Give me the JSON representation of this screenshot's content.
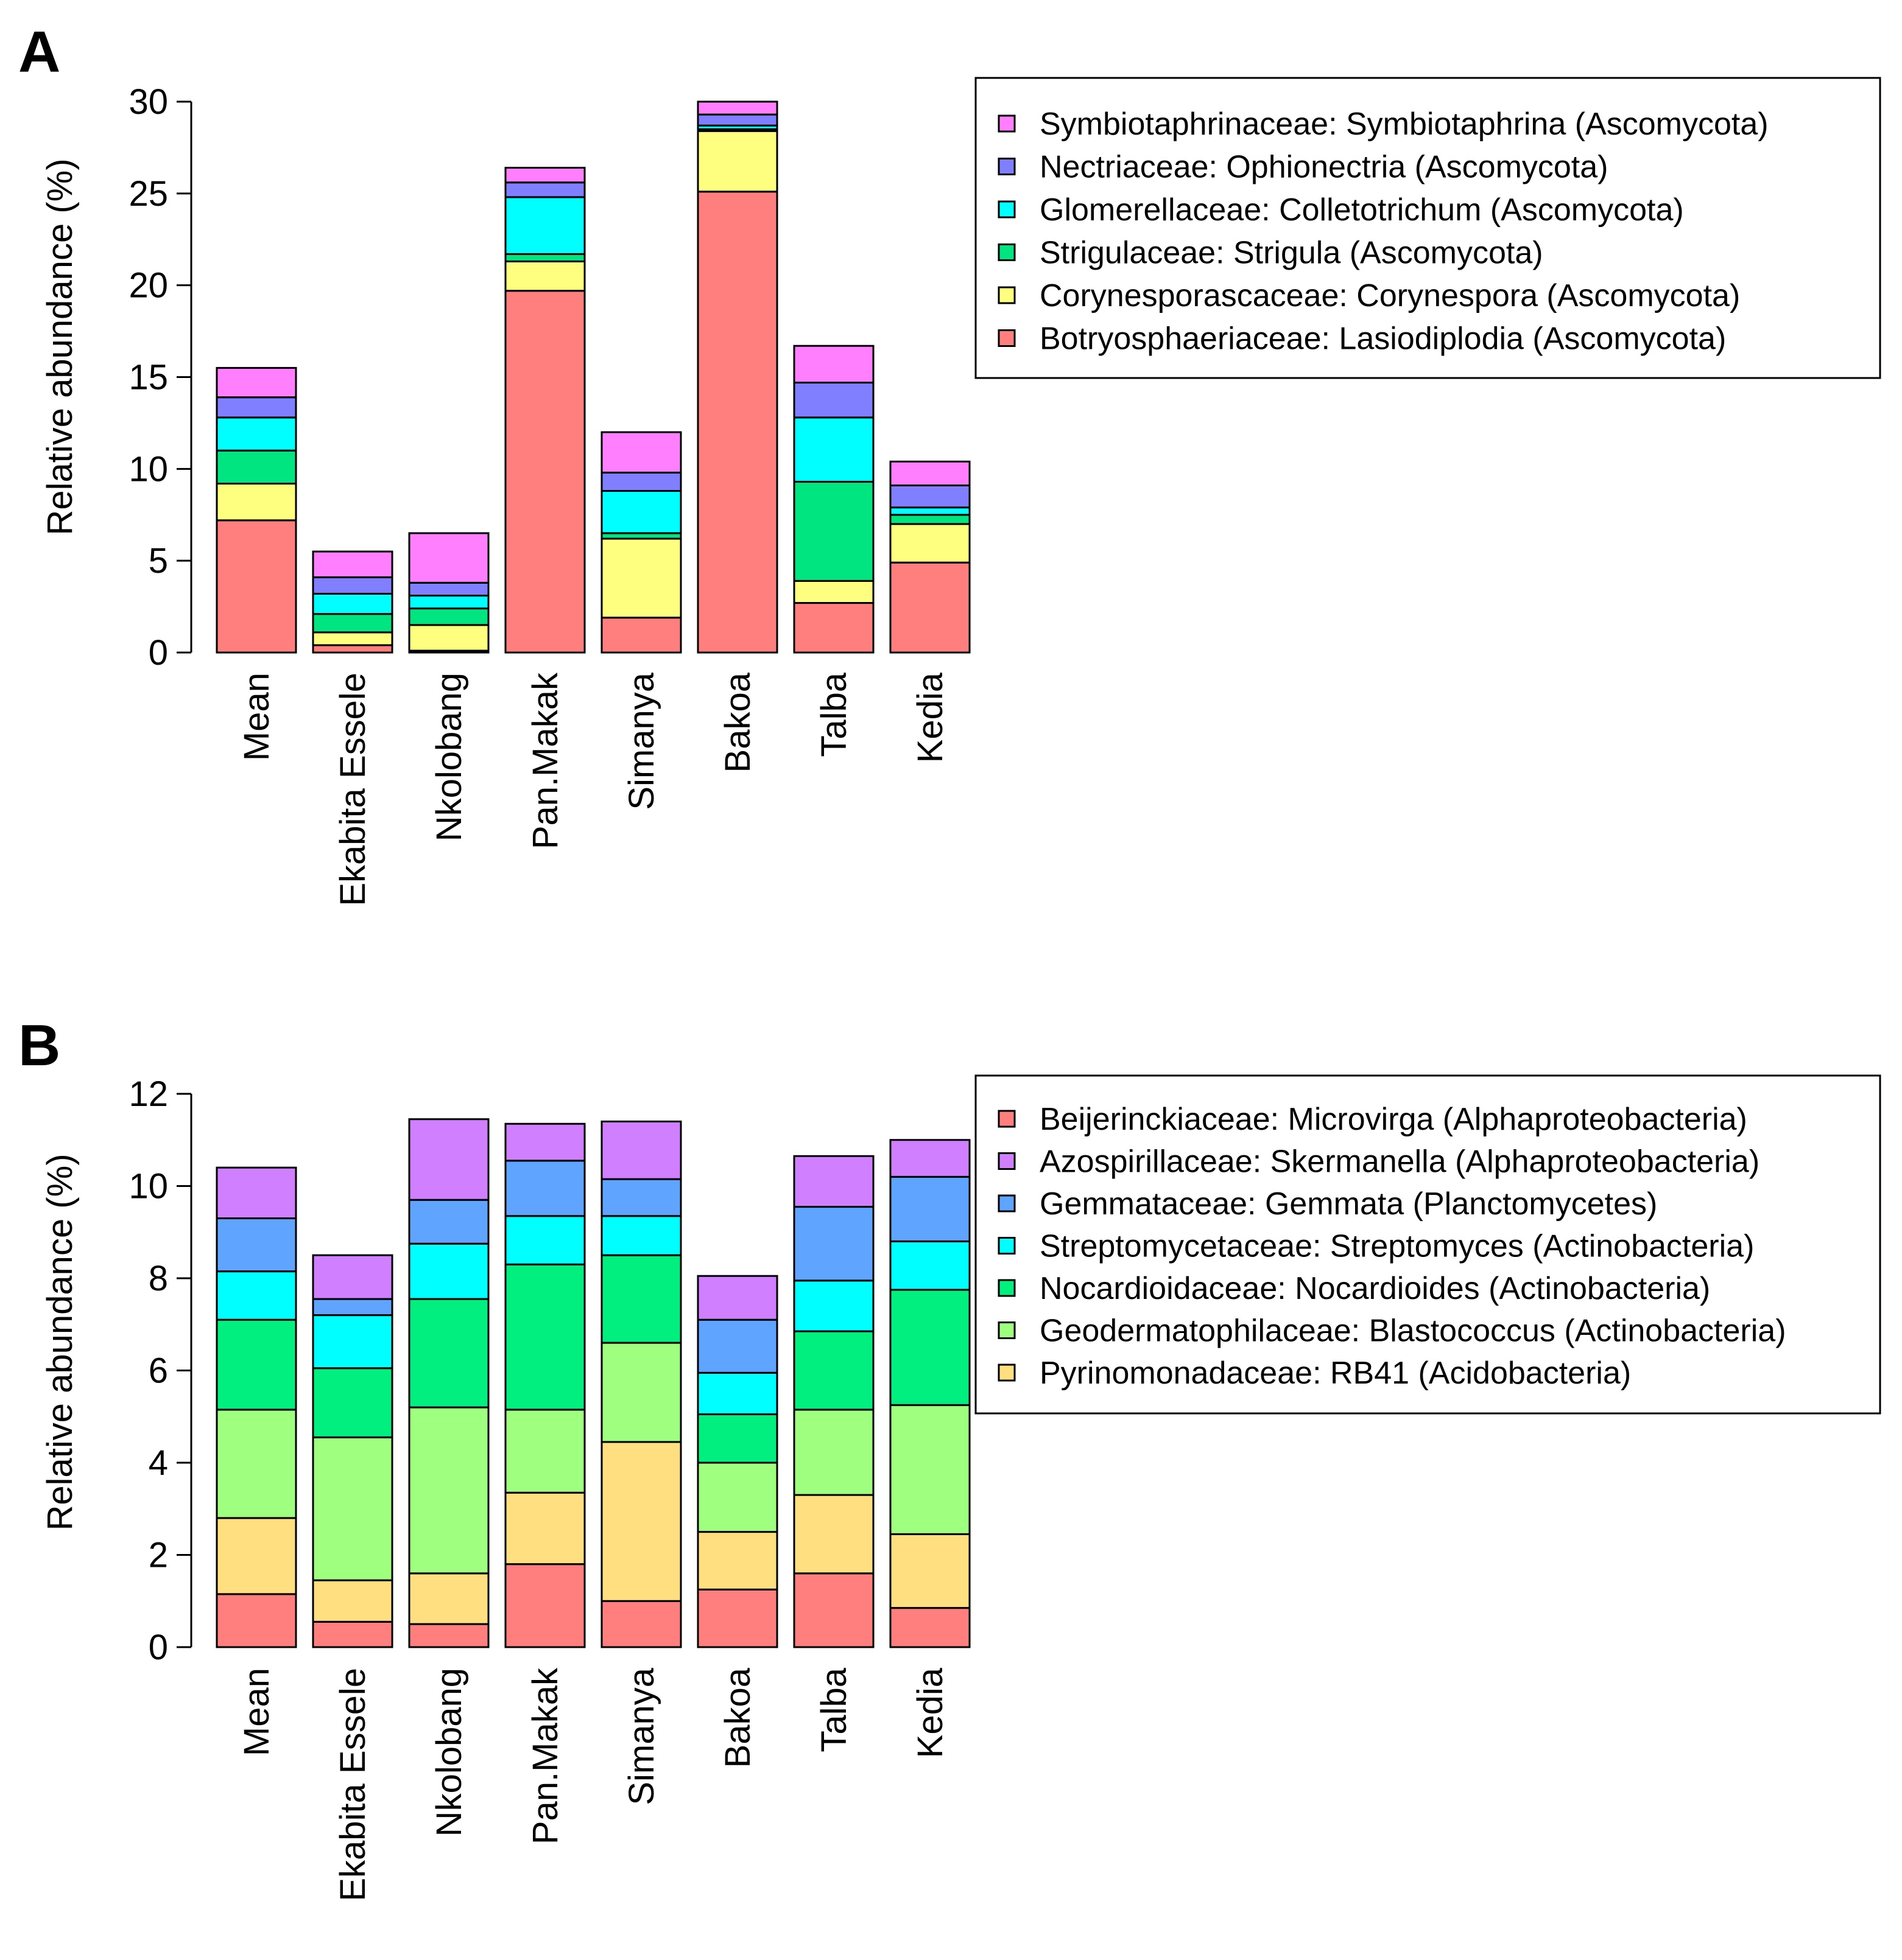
{
  "chart_data": [
    {
      "type": "bar",
      "stacked": true,
      "panel_label": "A",
      "title": "",
      "xlabel": "",
      "ylabel": "Relative abundance (%)",
      "ylim": [
        0,
        30
      ],
      "yticks": [
        "0",
        "5",
        "10",
        "15",
        "20",
        "25",
        "30"
      ],
      "grid": false,
      "legend_position": "right",
      "categories": [
        "Mean",
        "Ekabita Essele",
        "Nkolobang",
        "Pan.Makak",
        "Simanya",
        "Bakoa",
        "Talba",
        "Kedia"
      ],
      "series": [
        {
          "name": "Botryosphaeriaceae: Lasiodiplodia (Ascomycota)",
          "color": "#FF7F7F",
          "values": [
            7.2,
            0.4,
            0.1,
            19.7,
            1.9,
            25.1,
            2.7,
            4.9
          ]
        },
        {
          "name": "Corynesporascaceae: Corynespora (Ascomycota)",
          "color": "#FFFF7F",
          "values": [
            2.0,
            0.7,
            1.4,
            1.6,
            4.3,
            3.3,
            1.2,
            2.1
          ]
        },
        {
          "name": "Strigulaceae: Strigula (Ascomycota)",
          "color": "#00E57F",
          "values": [
            1.8,
            1.0,
            0.9,
            0.4,
            0.3,
            0.1,
            5.4,
            0.5
          ]
        },
        {
          "name": "Glomerellaceae: Colletotrichum (Ascomycota)",
          "color": "#00FFFF",
          "values": [
            1.8,
            1.1,
            0.7,
            3.1,
            2.3,
            0.2,
            3.5,
            0.4
          ]
        },
        {
          "name": "Nectriaceae: Ophionectria (Ascomycota)",
          "color": "#7F7FFF",
          "values": [
            1.1,
            0.9,
            0.7,
            0.8,
            1.0,
            0.6,
            1.9,
            1.2
          ]
        },
        {
          "name": "Symbiotaphrinaceae: Symbiotaphrina (Ascomycota)",
          "color": "#FF7FFF",
          "values": [
            1.6,
            1.4,
            2.7,
            0.8,
            2.2,
            0.7,
            2.0,
            1.3
          ]
        }
      ]
    },
    {
      "type": "bar",
      "stacked": true,
      "panel_label": "B",
      "title": "",
      "xlabel": "",
      "ylabel": "Relative abundance (%)",
      "ylim": [
        0,
        12
      ],
      "yticks": [
        "0",
        "2",
        "4",
        "6",
        "8",
        "10",
        "12"
      ],
      "grid": false,
      "legend_position": "right",
      "categories": [
        "Mean",
        "Ekabita Essele",
        "Nkolobang",
        "Pan.Makak",
        "Simanya",
        "Bakoa",
        "Talba",
        "Kedia"
      ],
      "series": [
        {
          "name": "Beijerinckiaceae: Microvirga (Alphaproteobacteria)",
          "color": "#FF7F7F",
          "values": [
            1.15,
            0.55,
            0.5,
            1.8,
            1.0,
            1.25,
            1.6,
            0.85
          ]
        },
        {
          "name": "Pyrinomonadaceae: RB41 (Acidobacteria)",
          "color": "#FFDF7F",
          "values": [
            1.65,
            0.9,
            1.1,
            1.55,
            3.45,
            1.25,
            1.7,
            1.6
          ]
        },
        {
          "name": "Geodermatophilaceae: Blastococcus (Actinobacteria)",
          "color": "#9FFF7F",
          "values": [
            2.35,
            3.1,
            3.6,
            1.8,
            2.15,
            1.5,
            1.85,
            2.8
          ]
        },
        {
          "name": "Nocardioidaceae: Nocardioides (Actinobacteria)",
          "color": "#00EF7F",
          "values": [
            1.95,
            1.5,
            2.35,
            3.15,
            1.9,
            1.05,
            1.7,
            2.5
          ]
        },
        {
          "name": "Streptomycetaceae: Streptomyces (Actinobacteria)",
          "color": "#00FFFF",
          "values": [
            1.05,
            1.15,
            1.2,
            1.05,
            0.85,
            0.9,
            1.1,
            1.05
          ]
        },
        {
          "name": "Gemmataceae: Gemmata (Planctomycetes)",
          "color": "#5FA5FF",
          "values": [
            1.15,
            0.35,
            0.95,
            1.2,
            0.8,
            1.15,
            1.6,
            1.4
          ]
        },
        {
          "name": "Azospirillaceae: Skermanella (Alphaproteobacteria)",
          "color": "#CF7FFF",
          "values": [
            1.1,
            0.95,
            1.75,
            0.8,
            1.25,
            0.95,
            1.1,
            0.8
          ]
        },
        {
          "name": "Beijerinckiaceae: Microvirga (Alphaproteobacteria)",
          "color": "#FF7F7F",
          "values": [
            0,
            0,
            0,
            0,
            0,
            0,
            0,
            0
          ]
        }
      ]
    }
  ]
}
